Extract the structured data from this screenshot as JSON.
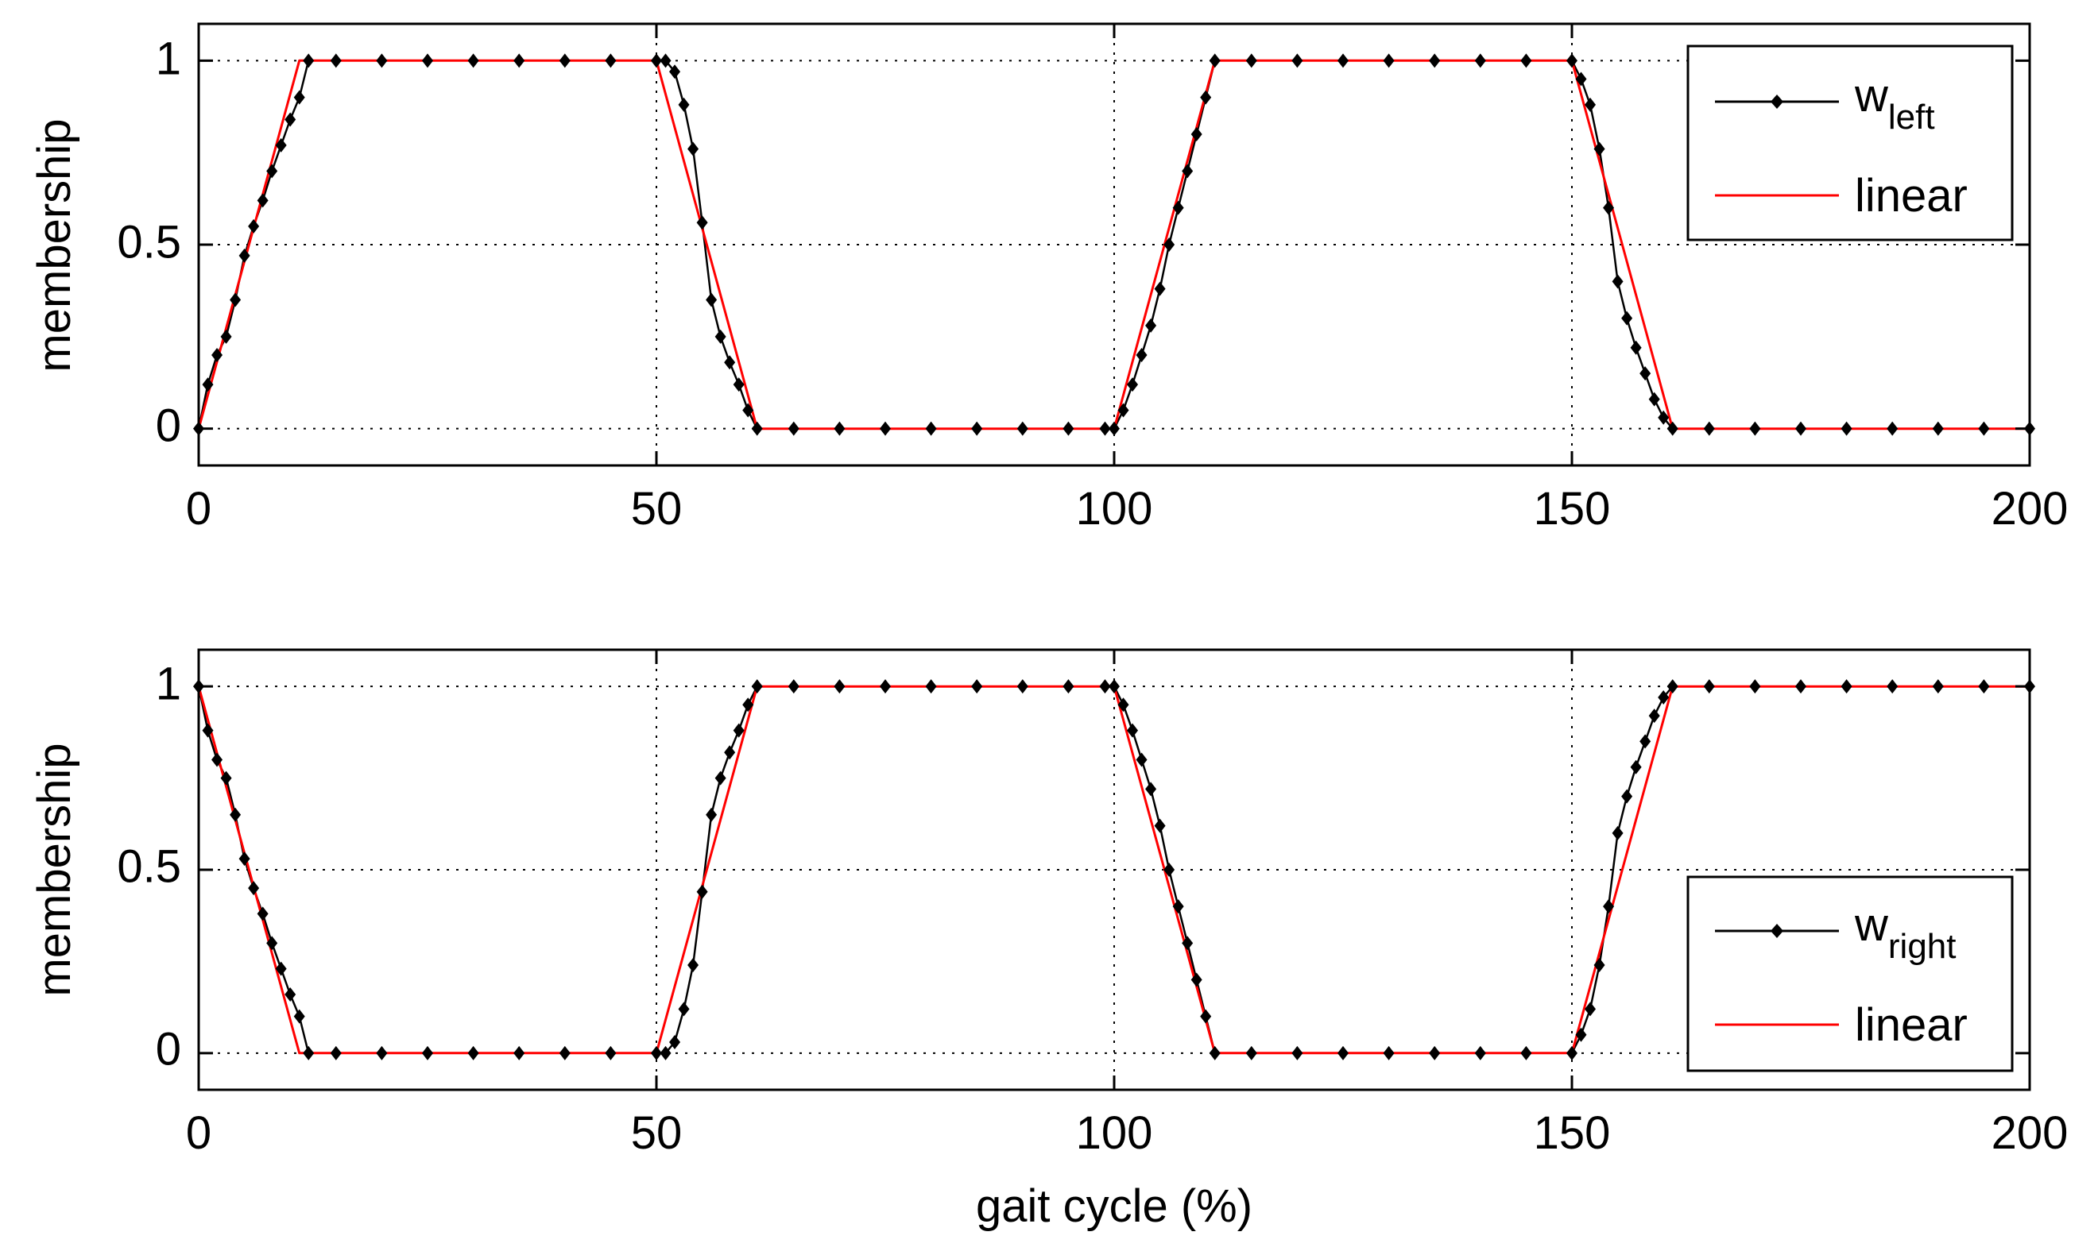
{
  "chart_data": [
    {
      "type": "line",
      "title": "",
      "xlabel": "",
      "ylabel": "membership",
      "xlim": [
        0,
        200
      ],
      "ylim": [
        -0.1,
        1.1
      ],
      "xticks": [
        0,
        50,
        100,
        150,
        200
      ],
      "xtick_labels": [
        "0",
        "50",
        "100",
        "150",
        "200"
      ],
      "yticks": [
        0,
        0.5,
        1
      ],
      "ytick_labels": [
        "0",
        "0.5",
        "1"
      ],
      "grid": true,
      "legend_position": "top-right",
      "legend": [
        {
          "base": "w",
          "sub": "left",
          "color": "#000000",
          "marker": "diamond"
        },
        {
          "base": "linear",
          "sub": "",
          "color": "#ff0000",
          "marker": "none"
        }
      ],
      "series": [
        {
          "name": "w_left",
          "color": "#000000",
          "marker": "diamond",
          "x": [
            0,
            1,
            2,
            3,
            4,
            5,
            6,
            7,
            8,
            9,
            10,
            11,
            12,
            15,
            20,
            25,
            30,
            35,
            40,
            45,
            50,
            51,
            52,
            53,
            54,
            55,
            56,
            57,
            58,
            59,
            60,
            61,
            65,
            70,
            75,
            80,
            85,
            90,
            95,
            99,
            100,
            101,
            102,
            103,
            104,
            105,
            106,
            107,
            108,
            109,
            110,
            111,
            115,
            120,
            125,
            130,
            135,
            140,
            145,
            150,
            151,
            152,
            153,
            154,
            155,
            156,
            157,
            158,
            159,
            160,
            161,
            165,
            170,
            175,
            180,
            185,
            190,
            195,
            200
          ],
          "y": [
            0,
            0.12,
            0.2,
            0.25,
            0.35,
            0.47,
            0.55,
            0.62,
            0.7,
            0.77,
            0.84,
            0.9,
            1,
            1,
            1,
            1,
            1,
            1,
            1,
            1,
            1,
            1,
            0.97,
            0.88,
            0.76,
            0.56,
            0.35,
            0.25,
            0.18,
            0.12,
            0.05,
            0,
            0,
            0,
            0,
            0,
            0,
            0,
            0,
            0,
            0,
            0.05,
            0.12,
            0.2,
            0.28,
            0.38,
            0.5,
            0.6,
            0.7,
            0.8,
            0.9,
            1,
            1,
            1,
            1,
            1,
            1,
            1,
            1,
            1,
            0.95,
            0.88,
            0.76,
            0.6,
            0.4,
            0.3,
            0.22,
            0.15,
            0.08,
            0.03,
            0,
            0,
            0,
            0,
            0,
            0,
            0,
            0,
            0
          ]
        },
        {
          "name": "linear",
          "color": "#ff0000",
          "marker": "none",
          "x": [
            0,
            11,
            50,
            61,
            100,
            111,
            150,
            161,
            200
          ],
          "y": [
            0,
            1,
            1,
            0,
            0,
            1,
            1,
            0,
            0
          ]
        }
      ]
    },
    {
      "type": "line",
      "title": "",
      "xlabel": "gait cycle (%)",
      "ylabel": "membership",
      "xlim": [
        0,
        200
      ],
      "ylim": [
        -0.1,
        1.1
      ],
      "xticks": [
        0,
        50,
        100,
        150,
        200
      ],
      "xtick_labels": [
        "0",
        "50",
        "100",
        "150",
        "200"
      ],
      "yticks": [
        0,
        0.5,
        1
      ],
      "ytick_labels": [
        "0",
        "0.5",
        "1"
      ],
      "grid": true,
      "legend_position": "bottom-right",
      "legend": [
        {
          "base": "w",
          "sub": "right",
          "color": "#000000",
          "marker": "diamond"
        },
        {
          "base": "linear",
          "sub": "",
          "color": "#ff0000",
          "marker": "none"
        }
      ],
      "series": [
        {
          "name": "w_right",
          "color": "#000000",
          "marker": "diamond",
          "x": [
            0,
            1,
            2,
            3,
            4,
            5,
            6,
            7,
            8,
            9,
            10,
            11,
            12,
            15,
            20,
            25,
            30,
            35,
            40,
            45,
            50,
            51,
            52,
            53,
            54,
            55,
            56,
            57,
            58,
            59,
            60,
            61,
            65,
            70,
            75,
            80,
            85,
            90,
            95,
            99,
            100,
            101,
            102,
            103,
            104,
            105,
            106,
            107,
            108,
            109,
            110,
            111,
            115,
            120,
            125,
            130,
            135,
            140,
            145,
            150,
            151,
            152,
            153,
            154,
            155,
            156,
            157,
            158,
            159,
            160,
            161,
            165,
            170,
            175,
            180,
            185,
            190,
            195,
            200
          ],
          "y": [
            1,
            0.88,
            0.8,
            0.75,
            0.65,
            0.53,
            0.45,
            0.38,
            0.3,
            0.23,
            0.16,
            0.1,
            0,
            0,
            0,
            0,
            0,
            0,
            0,
            0,
            0,
            0,
            0.03,
            0.12,
            0.24,
            0.44,
            0.65,
            0.75,
            0.82,
            0.88,
            0.95,
            1,
            1,
            1,
            1,
            1,
            1,
            1,
            1,
            1,
            1,
            0.95,
            0.88,
            0.8,
            0.72,
            0.62,
            0.5,
            0.4,
            0.3,
            0.2,
            0.1,
            0,
            0,
            0,
            0,
            0,
            0,
            0,
            0,
            0,
            0.05,
            0.12,
            0.24,
            0.4,
            0.6,
            0.7,
            0.78,
            0.85,
            0.92,
            0.97,
            1,
            1,
            1,
            1,
            1,
            1,
            1,
            1,
            1
          ]
        },
        {
          "name": "linear",
          "color": "#ff0000",
          "marker": "none",
          "x": [
            0,
            11,
            50,
            61,
            100,
            111,
            150,
            161,
            200
          ],
          "y": [
            1,
            0,
            0,
            1,
            1,
            0,
            0,
            1,
            1
          ]
        }
      ]
    }
  ]
}
